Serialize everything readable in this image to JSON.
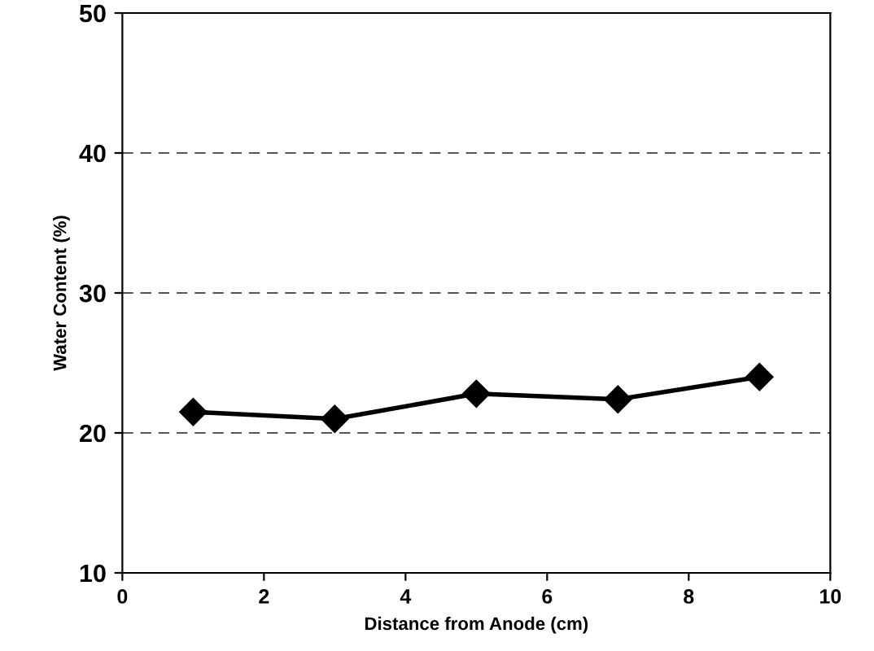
{
  "chart_data": {
    "type": "line",
    "xlabel": "Distance from Anode (cm)",
    "ylabel": "Water Content (%)",
    "x": [
      1,
      3,
      5,
      7,
      9
    ],
    "series": [
      {
        "color": "#000000",
        "values": [
          21.5,
          21.0,
          22.8,
          22.4,
          24.0
        ]
      }
    ],
    "xlim": [
      0,
      10
    ],
    "xticks": [
      0,
      2,
      4,
      6,
      8,
      10
    ],
    "ylim": [
      10,
      50
    ],
    "yticks": [
      10,
      20,
      30,
      40,
      50
    ],
    "grid": "y",
    "marker": "diamond",
    "line_style": "solid",
    "legend": false
  }
}
